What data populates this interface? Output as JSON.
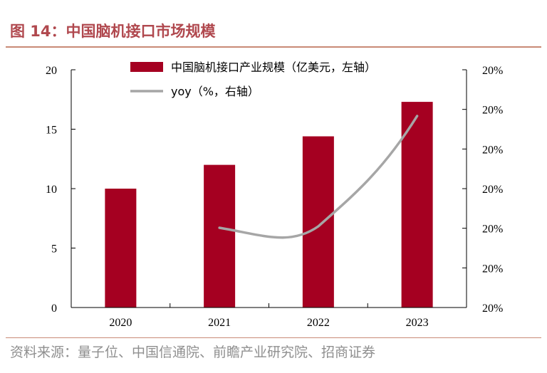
{
  "title": "图 14：中国脑机接口市场规模",
  "source": "资料来源：量子位、中国信通院、前瞻产业研究院、招商证券",
  "colors": {
    "bar": "#a50021",
    "line": "#a6a6a6",
    "title": "#b0484e",
    "rule": "#c98a76"
  },
  "chart_data": {
    "type": "bar+line",
    "categories": [
      "2020",
      "2021",
      "2022",
      "2023"
    ],
    "series": [
      {
        "name": "中国脑机接口产业规模（亿美元，左轴）",
        "kind": "bar",
        "axis": "left",
        "values": [
          10.0,
          12.0,
          14.4,
          17.3
        ]
      },
      {
        "name": "yoy（%，右轴）",
        "kind": "line",
        "axis": "right",
        "values": [
          null,
          0.2,
          0.2,
          0.2
        ]
      }
    ],
    "left_axis": {
      "min": 0,
      "max": 20,
      "ticks": [
        "0",
        "5",
        "10",
        "15",
        "20"
      ]
    },
    "right_axis": {
      "ticks": [
        "20%",
        "20%",
        "20%",
        "20%",
        "20%",
        "20%",
        "20%"
      ]
    },
    "legend_position": "top-center"
  }
}
